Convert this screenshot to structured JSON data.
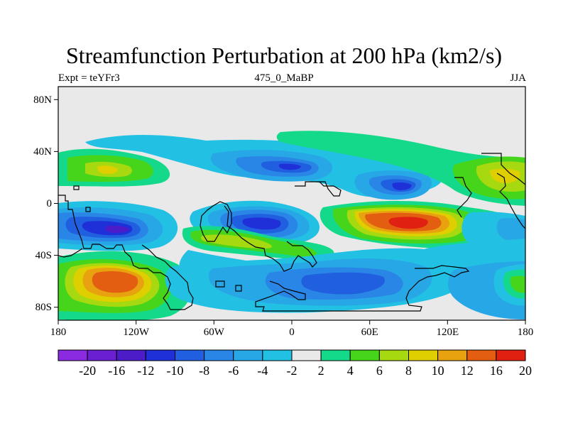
{
  "title": "Streamfunction Perturbation at 200 hPa (km2/s)",
  "left_label": "Expt = teYFr3",
  "center_label": "475_0_MaBP",
  "right_label": "JJA",
  "x_ticks": [
    "180",
    "120W",
    "60W",
    "0",
    "60E",
    "120E",
    "180"
  ],
  "y_ticks": [
    "80N",
    "40N",
    "0",
    "40S",
    "80S"
  ],
  "colorbar": {
    "levels": [
      "-20",
      "-16",
      "-12",
      "-10",
      "-8",
      "-6",
      "-4",
      "-2",
      "2",
      "4",
      "6",
      "8",
      "10",
      "12",
      "16",
      "20"
    ],
    "colors": [
      "#8a2be2",
      "#6a1fd0",
      "#4b1cc8",
      "#2030d8",
      "#1f5fe0",
      "#2a86e6",
      "#27a7e6",
      "#22c0e3",
      "#e9e9e9",
      "#14d98a",
      "#46d51a",
      "#a6d90f",
      "#e0cf00",
      "#e8a210",
      "#e35e10",
      "#e02010"
    ]
  }
}
